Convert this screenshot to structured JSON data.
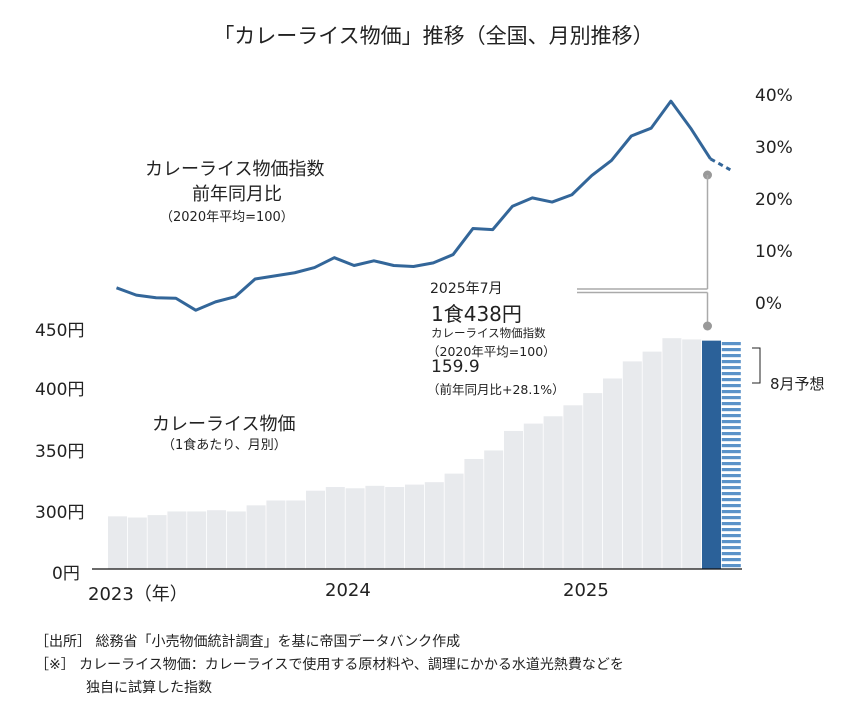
{
  "title": "「カレーライス物価」推移（全国、月別推移）",
  "chart_data": [
    {
      "type": "bar",
      "label": "カレーライス物価",
      "sublabel": "（1食あたり、月別）",
      "unit": "円",
      "y_ticks": [
        "0円",
        "300円",
        "350円",
        "400円",
        "450円"
      ],
      "x_tick_labels": [
        "2023（年）",
        "2024",
        "2025"
      ],
      "categories": [
        "2023-01",
        "2023-02",
        "2023-03",
        "2023-04",
        "2023-05",
        "2023-06",
        "2023-07",
        "2023-08",
        "2023-09",
        "2023-10",
        "2023-11",
        "2023-12",
        "2024-01",
        "2024-02",
        "2024-03",
        "2024-04",
        "2024-05",
        "2024-06",
        "2024-07",
        "2024-08",
        "2024-09",
        "2024-10",
        "2024-11",
        "2024-12",
        "2025-01",
        "2025-02",
        "2025-03",
        "2025-04",
        "2025-05",
        "2025-06",
        "2025-07",
        "2025-08"
      ],
      "values": [
        294,
        293,
        295,
        298,
        298,
        299,
        298,
        303,
        307,
        307,
        315,
        318,
        317,
        319,
        318,
        320,
        322,
        329,
        341,
        348,
        364,
        370,
        376,
        385,
        395,
        407,
        421,
        429,
        440,
        439,
        438,
        437
      ],
      "highlight_index": 30,
      "forecast_index": 31,
      "forecast_label": "8月予想",
      "axis_break": "0円–300円",
      "colors": {
        "bar": "#e8eaed",
        "highlight": "#2b6199",
        "forecast_stripe": "#5b93c9"
      }
    },
    {
      "type": "line",
      "label": "カレーライス物価指数",
      "label2": "前年同月比",
      "sublabel": "（2020年平均=100）",
      "y_ticks": [
        "0%",
        "10%",
        "20%",
        "30%",
        "40%"
      ],
      "ylim": [
        0,
        40
      ],
      "values": [
        3.3,
        1.9,
        1.4,
        1.3,
        -1.0,
        0.6,
        1.6,
        5.0,
        5.6,
        6.2,
        7.2,
        9.1,
        7.6,
        8.5,
        7.6,
        7.4,
        8.1,
        9.7,
        14.7,
        14.5,
        19.0,
        20.6,
        19.8,
        21.2,
        24.9,
        27.8,
        32.5,
        34.0,
        39.2,
        34.0,
        28.1,
        26.0
      ],
      "forecast_index": 31,
      "color": "#336699"
    }
  ],
  "annotation": {
    "month": "2025年7月",
    "price": "1食438円",
    "index_label": "カレーライス物価指数",
    "index_base": "（2020年平均=100）",
    "index_value": "159.9",
    "yoy": "（前年同月比+28.1%）"
  },
  "footnotes": [
    "［出所］ 総務省「小売物価統計調査」を基に帝国データバンク作成",
    "［※］ カレーライス物価：カレーライスで使用する原材料や、調理にかかる水道光熱費などを",
    "独自に試算した指数"
  ]
}
